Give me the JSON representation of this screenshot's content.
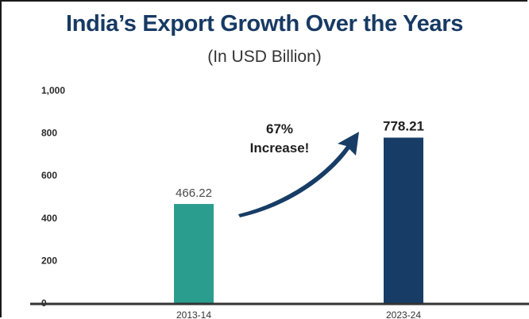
{
  "header": {
    "title": "India’s Export Growth Over the Years",
    "subtitle": "(In USD Billion)"
  },
  "chart_data": {
    "type": "bar",
    "title": "India’s Export Growth Over the Years",
    "subtitle": "(In USD Billion)",
    "categories": [
      "2013-14",
      "2023-24"
    ],
    "values": [
      466.22,
      778.21
    ],
    "data_labels": [
      "466.22",
      "778.21"
    ],
    "bar_colors": [
      "#2a9d8f",
      "#173d66"
    ],
    "ylim": [
      0,
      1000
    ],
    "yticks": [
      0,
      200,
      400,
      600,
      800,
      1000
    ],
    "ytick_labels": [
      "0",
      "200",
      "400",
      "600",
      "800",
      "1,000"
    ],
    "grid": false,
    "annotation": {
      "line1": "67%",
      "line2": "Increase!",
      "arrow_color": "#173d66"
    }
  }
}
